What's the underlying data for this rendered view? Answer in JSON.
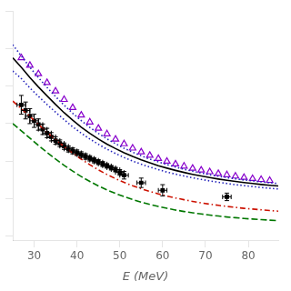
{
  "chart_data": {
    "type": "line",
    "xlabel": "E (MeV)",
    "xlim": [
      25,
      87
    ],
    "xticks": [
      30,
      40,
      50,
      60,
      70,
      80
    ],
    "ylim": [
      -20,
      1200
    ],
    "yticks": [
      0,
      200,
      400,
      600,
      800,
      1000,
      1200
    ],
    "tick_labels": "x",
    "grid": false,
    "series": [
      {
        "type": "line",
        "color": "#007700",
        "line_style": "dashed",
        "x": [
          25,
          27,
          29,
          31,
          33,
          35,
          37,
          39,
          41,
          43,
          45,
          47,
          49,
          51,
          53,
          55,
          57,
          59,
          61,
          63,
          65,
          67,
          69,
          71,
          73,
          75,
          77,
          79,
          81,
          83,
          85,
          87
        ],
        "values": [
          600,
          562,
          523,
          484,
          447,
          411,
          378,
          347,
          318,
          292,
          268,
          247,
          228,
          211,
          196,
          182,
          170,
          159,
          149,
          140,
          132,
          125,
          119,
          113,
          108,
          103,
          99,
          95,
          92,
          89,
          86,
          83
        ]
      },
      {
        "type": "line",
        "color": "#cc1100",
        "line_style": "dashdot",
        "x": [
          25,
          27,
          29,
          31,
          33,
          35,
          37,
          39,
          41,
          43,
          45,
          47,
          49,
          51,
          53,
          55,
          57,
          59,
          61,
          63,
          65,
          67,
          69,
          71,
          73,
          75,
          77,
          79,
          81,
          83,
          85,
          87
        ],
        "values": [
          720,
          680,
          638,
          596,
          555,
          515,
          478,
          443,
          411,
          381,
          354,
          329,
          307,
          287,
          269,
          253,
          239,
          226,
          214,
          204,
          195,
          186,
          178,
          171,
          165,
          159,
          154,
          149,
          145,
          141,
          137,
          134
        ]
      },
      {
        "type": "line",
        "color": "#2222bb",
        "line_style": "dotted",
        "x": [
          25,
          27,
          29,
          31,
          33,
          35,
          37,
          39,
          41,
          43,
          45,
          47,
          49,
          51,
          53,
          55,
          57,
          59,
          61,
          63,
          65,
          67,
          69,
          71,
          73,
          75,
          77,
          79,
          81,
          83,
          85,
          87
        ],
        "values": [
          880,
          840,
          790,
          745,
          702,
          661,
          621,
          583,
          549,
          518,
          490,
          464,
          441,
          420,
          401,
          384,
          369,
          355,
          342,
          331,
          321,
          311,
          303,
          295,
          288,
          281,
          275,
          270,
          265,
          260,
          256,
          252
        ]
      },
      {
        "type": "line",
        "color": "#2222bb",
        "line_style": "dotted",
        "x": [
          25,
          27,
          29,
          31,
          33,
          35,
          37,
          39,
          41,
          43,
          45,
          47,
          49,
          51,
          53,
          55,
          57,
          59,
          61,
          63,
          65,
          67,
          69,
          71,
          73,
          75,
          77,
          79,
          81,
          83,
          85,
          87
        ],
        "values": [
          1020,
          960,
          900,
          845,
          793,
          744,
          698,
          655,
          616,
          580,
          548,
          519,
          493,
          469,
          448,
          429,
          411,
          396,
          382,
          369,
          357,
          347,
          337,
          328,
          320,
          313,
          306,
          300,
          295,
          290,
          285,
          281
        ]
      },
      {
        "type": "line",
        "color": "#000000",
        "line_style": "solid",
        "x": [
          25,
          27,
          29,
          31,
          33,
          35,
          37,
          39,
          41,
          43,
          45,
          47,
          49,
          51,
          53,
          55,
          57,
          59,
          61,
          63,
          65,
          67,
          69,
          71,
          73,
          75,
          77,
          79,
          81,
          83,
          85,
          87
        ],
        "values": [
          950,
          900,
          845,
          795,
          748,
          702,
          658,
          618,
          581,
          548,
          518,
          491,
          467,
          445,
          425,
          407,
          391,
          376,
          363,
          351,
          340,
          330,
          321,
          313,
          305,
          298,
          292,
          286,
          281,
          276,
          272,
          268
        ]
      },
      {
        "type": "scatter",
        "color": "#8800cc",
        "marker": "triangle",
        "x": [
          27,
          29,
          31,
          33,
          35,
          37,
          39,
          41,
          43,
          45,
          47,
          49,
          51,
          53,
          55,
          57,
          59,
          61,
          63,
          65,
          67,
          69,
          71,
          73,
          75,
          77,
          79,
          81,
          83,
          85
        ],
        "values": [
          950,
          910,
          865,
          818,
          773,
          728,
          685,
          645,
          608,
          575,
          545,
          517,
          492,
          469,
          449,
          431,
          414,
          399,
          385,
          373,
          362,
          352,
          343,
          334,
          327,
          320,
          313,
          307,
          302,
          297
        ]
      },
      {
        "type": "scatter",
        "color": "#000000",
        "marker": "square",
        "x": [
          27,
          28,
          29,
          30,
          31,
          32,
          33,
          34,
          35,
          36,
          37,
          38,
          39,
          40,
          41,
          42,
          43,
          44,
          45,
          46,
          47,
          48,
          49,
          50,
          51,
          55,
          60,
          75
        ],
        "values": [
          700,
          670,
          640,
          615,
          595,
          570,
          550,
          530,
          510,
          495,
          480,
          465,
          455,
          445,
          435,
          425,
          415,
          405,
          395,
          385,
          375,
          365,
          355,
          340,
          325,
          285,
          245,
          210
        ],
        "yerr": [
          50,
          45,
          40,
          35,
          30,
          28,
          25,
          22,
          20,
          18,
          17,
          16,
          16,
          15,
          15,
          15,
          14,
          14,
          13,
          13,
          12,
          12,
          12,
          15,
          20,
          25,
          30,
          20
        ],
        "xerr": [
          1,
          1,
          1,
          1,
          1,
          1,
          1,
          1,
          1,
          1,
          1,
          1,
          1,
          1,
          1,
          1,
          1,
          1,
          1,
          1,
          1,
          1,
          1,
          1,
          1,
          1,
          1,
          1
        ]
      }
    ]
  }
}
